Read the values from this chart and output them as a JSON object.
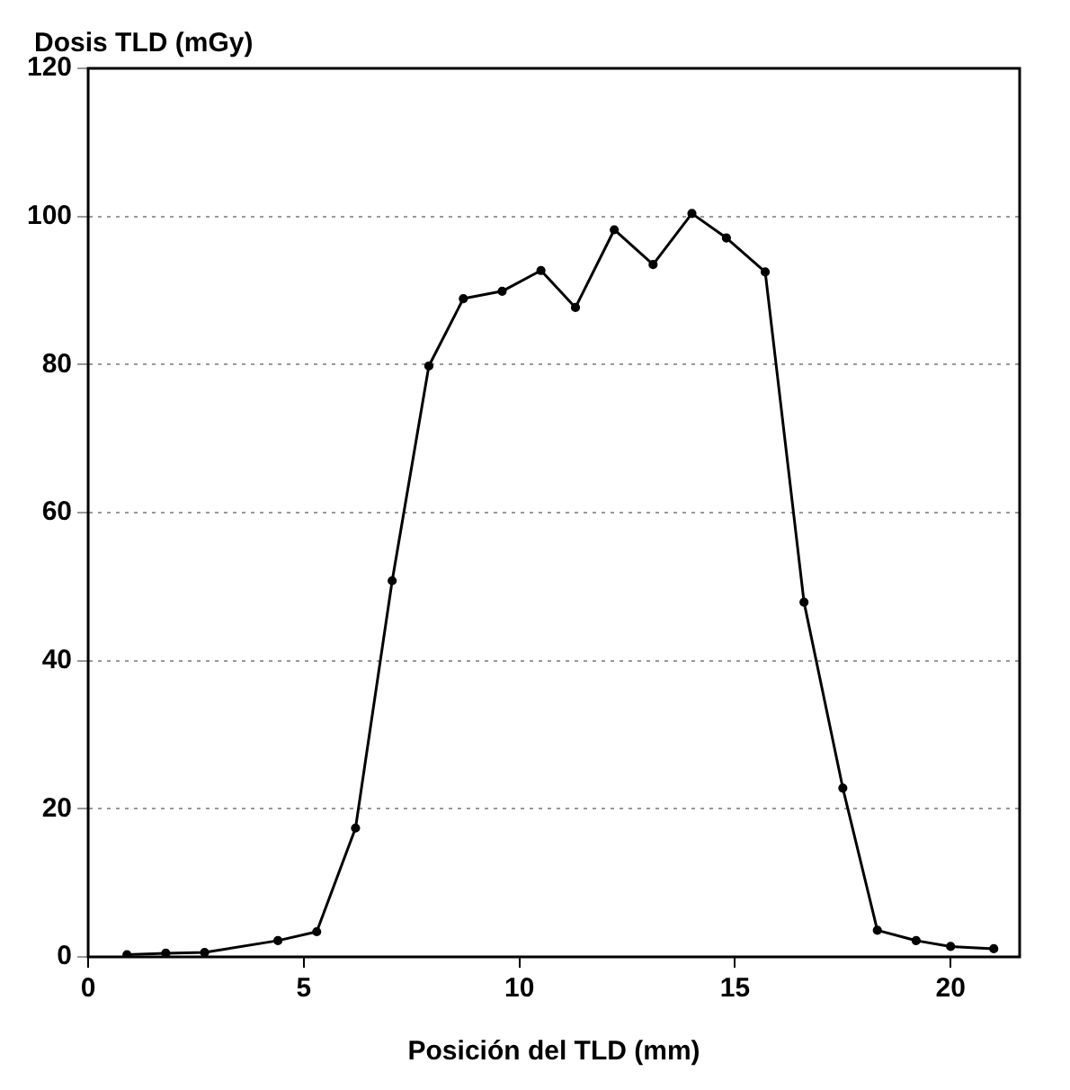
{
  "chart_data": {
    "type": "line",
    "xlabel": "Posición del TLD (mm)",
    "ylabel": "Dosis TLD (mGy)",
    "series": [
      {
        "color": "#000000",
        "x": [
          0.9,
          1.8,
          2.7,
          4.4,
          5.3,
          6.2,
          7.05,
          7.9,
          8.7,
          9.6,
          10.5,
          11.3,
          12.2,
          13.1,
          14.0,
          14.8,
          15.7,
          16.6,
          17.5,
          18.3,
          19.2,
          20.0,
          21.0
        ],
        "values": [
          0.3,
          0.5,
          0.6,
          2.2,
          3.4,
          17.4,
          50.8,
          79.8,
          88.9,
          89.9,
          92.7,
          87.7,
          98.2,
          93.5,
          100.4,
          97.1,
          92.5,
          47.9,
          22.8,
          3.6,
          2.2,
          1.4,
          1.1
        ]
      }
    ],
    "xlim": [
      0,
      21.6
    ],
    "xticks": [
      0,
      5,
      10,
      15,
      20
    ],
    "ylim": [
      0,
      120
    ],
    "yticks": [
      0,
      20,
      40,
      60,
      80,
      100,
      120
    ],
    "grid": "y",
    "legend": false,
    "marker": "circle",
    "line_style": "solid"
  }
}
